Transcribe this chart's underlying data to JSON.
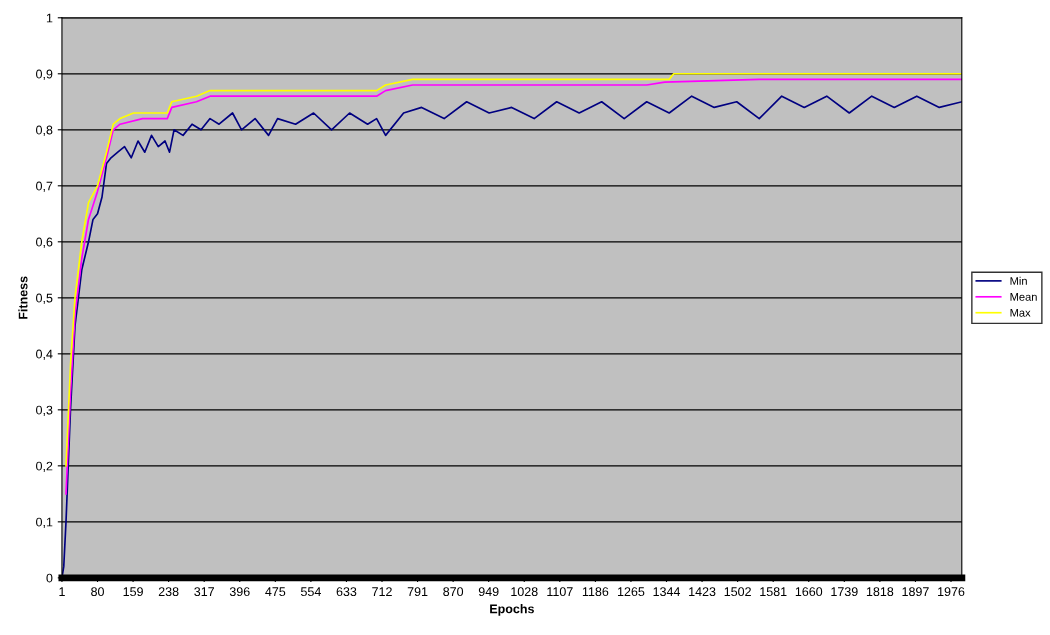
{
  "chart_data": {
    "type": "line",
    "xlabel": "Epochs",
    "ylabel": "Fitness",
    "xlim": [
      1,
      2000
    ],
    "xticks": [
      1,
      80,
      159,
      238,
      317,
      396,
      475,
      554,
      633,
      712,
      791,
      870,
      949,
      1028,
      1107,
      1186,
      1265,
      1344,
      1423,
      1502,
      1581,
      1660,
      1739,
      1818,
      1897,
      1976
    ],
    "ylim": [
      0,
      1
    ],
    "yticks": [
      0,
      {
        "value": 0.1,
        "label": "0,1"
      },
      {
        "value": 0.2,
        "label": "0,2"
      },
      {
        "value": 0.3,
        "label": "0,3"
      },
      {
        "value": 0.4,
        "label": "0,4"
      },
      {
        "value": 0.5,
        "label": "0,5"
      },
      {
        "value": 0.6,
        "label": "0,6"
      },
      {
        "value": 0.7,
        "label": "0,7"
      },
      {
        "value": 0.8,
        "label": "0,8"
      },
      {
        "value": 0.9,
        "label": "0,9"
      },
      1
    ],
    "grid": "y",
    "legend": "right",
    "series": [
      {
        "name": "Min",
        "color": "#000080",
        "x": [
          1,
          5,
          10,
          20,
          30,
          45,
          60,
          70,
          80,
          90,
          100,
          110,
          125,
          140,
          155,
          170,
          185,
          200,
          215,
          230,
          240,
          250,
          270,
          290,
          310,
          330,
          350,
          380,
          400,
          430,
          460,
          480,
          520,
          560,
          600,
          640,
          680,
          700,
          720,
          760,
          800,
          850,
          900,
          950,
          1000,
          1050,
          1100,
          1150,
          1200,
          1250,
          1300,
          1350,
          1400,
          1450,
          1500,
          1550,
          1600,
          1650,
          1700,
          1750,
          1800,
          1850,
          1900,
          1950,
          2000
        ],
        "values": [
          0,
          0.02,
          0.1,
          0.3,
          0.45,
          0.55,
          0.6,
          0.64,
          0.65,
          0.68,
          0.74,
          0.75,
          0.76,
          0.77,
          0.75,
          0.78,
          0.76,
          0.79,
          0.77,
          0.78,
          0.76,
          0.8,
          0.79,
          0.81,
          0.8,
          0.82,
          0.81,
          0.83,
          0.8,
          0.82,
          0.79,
          0.82,
          0.81,
          0.83,
          0.8,
          0.83,
          0.81,
          0.82,
          0.79,
          0.83,
          0.84,
          0.82,
          0.85,
          0.83,
          0.84,
          0.82,
          0.85,
          0.83,
          0.85,
          0.82,
          0.85,
          0.83,
          0.86,
          0.84,
          0.85,
          0.82,
          0.86,
          0.84,
          0.86,
          0.83,
          0.86,
          0.84,
          0.86,
          0.84,
          0.85
        ]
      },
      {
        "name": "Mean",
        "color": "#ff00ff",
        "x": [
          10,
          20,
          30,
          45,
          60,
          80,
          100,
          115,
          130,
          180,
          235,
          245,
          300,
          330,
          700,
          720,
          780,
          1300,
          1340,
          1550,
          2000
        ],
        "values": [
          0.15,
          0.33,
          0.47,
          0.57,
          0.64,
          0.69,
          0.75,
          0.8,
          0.81,
          0.82,
          0.82,
          0.84,
          0.85,
          0.86,
          0.86,
          0.87,
          0.88,
          0.88,
          0.885,
          0.89,
          0.89
        ]
      },
      {
        "name": "Max",
        "color": "#ffff00",
        "x": [
          10,
          20,
          30,
          45,
          60,
          80,
          100,
          115,
          130,
          160,
          235,
          245,
          300,
          330,
          700,
          720,
          780,
          1350,
          1360,
          2000
        ],
        "values": [
          0.2,
          0.38,
          0.5,
          0.6,
          0.67,
          0.7,
          0.76,
          0.81,
          0.82,
          0.83,
          0.83,
          0.85,
          0.86,
          0.87,
          0.87,
          0.88,
          0.89,
          0.89,
          0.9,
          0.9
        ]
      }
    ]
  }
}
